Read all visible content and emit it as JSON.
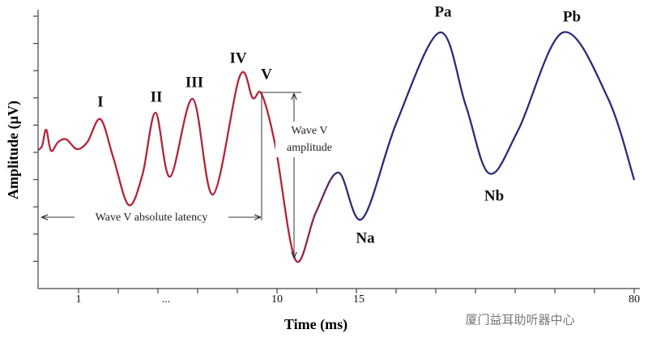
{
  "y_axis_label": "Amplitude (µV)",
  "x_axis_label": "Time (ms)",
  "x_tick_labels": [
    "1",
    "...",
    "10",
    "15",
    "80"
  ],
  "peaks": [
    "I",
    "II",
    "III",
    "IV",
    "V",
    "Na",
    "Pa",
    "Nb",
    "Pb"
  ],
  "annotations": {
    "latency": "Wave V absolute latency",
    "amplitude": [
      "Wave V",
      "amplitude"
    ]
  },
  "watermark": "厦门益耳助听器中心"
}
